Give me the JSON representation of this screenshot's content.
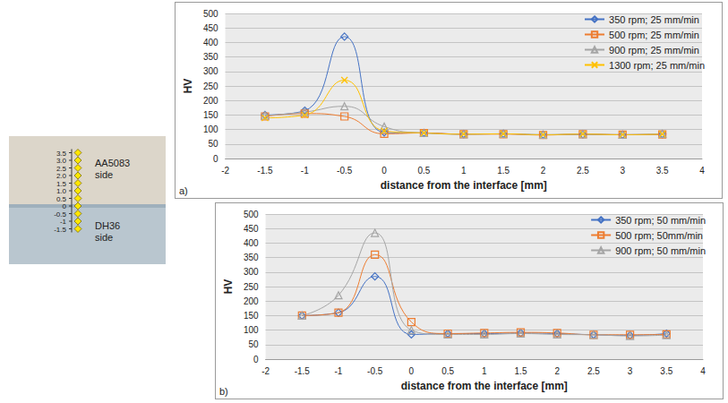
{
  "chart_data": [
    {
      "type": "line",
      "panel": "a)",
      "x_label": "distance from the interface [mm]",
      "y_label": "HV",
      "x": [
        -1.5,
        -1,
        -0.5,
        0,
        0.5,
        1,
        1.5,
        2,
        2.5,
        3,
        3.5
      ],
      "series": [
        {
          "name": "350 rpm; 25 mm/min",
          "color": "#4472c4",
          "marker": "diamond",
          "values": [
            150,
            165,
            420,
            90,
            88,
            84,
            85,
            82,
            83,
            82,
            84
          ]
        },
        {
          "name": "500 rpm; 25 mm/min",
          "color": "#ed7d31",
          "marker": "square",
          "values": [
            145,
            155,
            145,
            85,
            88,
            84,
            84,
            81,
            84,
            82,
            83
          ]
        },
        {
          "name": "900 rpm; 25 mm/min",
          "color": "#a5a5a5",
          "marker": "triangle",
          "values": [
            148,
            160,
            180,
            110,
            88,
            84,
            85,
            82,
            84,
            82,
            85
          ]
        },
        {
          "name": "1300 rpm; 25 mm/min",
          "color": "#ffc000",
          "marker": "x",
          "values": [
            140,
            150,
            270,
            95,
            88,
            84,
            85,
            82,
            84,
            82,
            84
          ]
        }
      ],
      "xlim": [
        -2,
        4
      ],
      "xticks": [
        -2,
        -1.5,
        -1,
        -0.5,
        0,
        0.5,
        1,
        1.5,
        2,
        2.5,
        3,
        3.5,
        4
      ],
      "ylim": [
        0,
        500
      ],
      "yticks": [
        0,
        50,
        100,
        150,
        200,
        250,
        300,
        350,
        400,
        450,
        500
      ],
      "grid": true,
      "legend": "upper right",
      "line_style": "smooth"
    },
    {
      "type": "line",
      "panel": "b)",
      "x_label": "distance from the interface [mm]",
      "y_label": "HV",
      "x": [
        -1.5,
        -1,
        -0.5,
        0,
        0.5,
        1,
        1.5,
        2,
        2.5,
        3,
        3.5
      ],
      "series": [
        {
          "name": "350 rpm; 50 mm/min",
          "color": "#4472c4",
          "marker": "diamond",
          "values": [
            150,
            160,
            285,
            85,
            88,
            88,
            90,
            88,
            84,
            82,
            88
          ]
        },
        {
          "name": "500 rpm; 50mm/min",
          "color": "#ed7d31",
          "marker": "square",
          "values": [
            150,
            160,
            360,
            128,
            88,
            90,
            92,
            90,
            84,
            84,
            85
          ]
        },
        {
          "name": "900 rpm; 50 mm/min",
          "color": "#a5a5a5",
          "marker": "triangle",
          "values": [
            150,
            220,
            435,
            100,
            85,
            85,
            88,
            85,
            84,
            80,
            83
          ]
        }
      ],
      "xlim": [
        -2,
        4
      ],
      "xticks": [
        -2,
        -1.5,
        -1,
        -0.5,
        0,
        0.5,
        1,
        1.5,
        2,
        2.5,
        3,
        3.5,
        4
      ],
      "ylim": [
        0,
        500
      ],
      "yticks": [
        0,
        50,
        100,
        150,
        200,
        250,
        300,
        350,
        400,
        450,
        500
      ],
      "grid": true,
      "legend": "upper right",
      "line_style": "smooth"
    }
  ],
  "photo": {
    "scale": [
      {
        "value": 3.5,
        "label": "3.5"
      },
      {
        "value": 3,
        "label": "3.0"
      },
      {
        "value": 2.5,
        "label": "2.5"
      },
      {
        "value": 2,
        "label": "2.0"
      },
      {
        "value": 1.5,
        "label": "1.5"
      },
      {
        "value": 1,
        "label": "1.0"
      },
      {
        "value": 0.5,
        "label": "0.5"
      },
      {
        "value": 0,
        "label": "0"
      },
      {
        "value": -0.5,
        "label": "-0.5"
      },
      {
        "value": -1,
        "label": "-1"
      },
      {
        "value": -1.5,
        "label": "-1.5"
      }
    ],
    "upper_label": "AA5083 side",
    "lower_label": "DH36 side"
  }
}
